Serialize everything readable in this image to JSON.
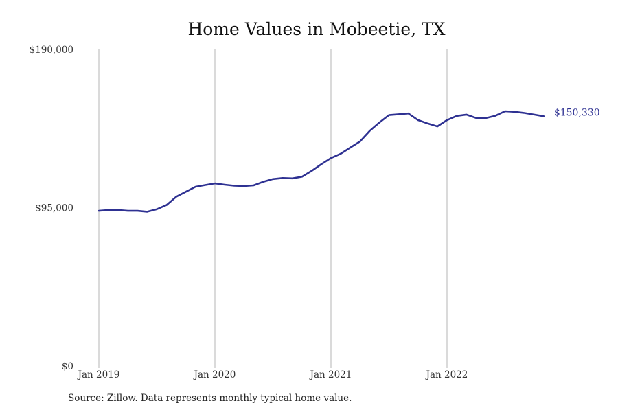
{
  "chart_data": {
    "type": "line",
    "title": "Home Values in Mobeetie, TX",
    "xlabel": "",
    "ylabel": "",
    "ylim": [
      0,
      190000
    ],
    "y_ticks": [
      {
        "value": 0,
        "label": "$0"
      },
      {
        "value": 95000,
        "label": "$95,000"
      },
      {
        "value": 190000,
        "label": "$190,000"
      }
    ],
    "x_ticks": [
      {
        "value": "2019-01",
        "label": "Jan 2019"
      },
      {
        "value": "2020-01",
        "label": "Jan 2020"
      },
      {
        "value": "2021-01",
        "label": "Jan 2021"
      },
      {
        "value": "2022-01",
        "label": "Jan 2022"
      }
    ],
    "x_range": [
      "2019-01",
      "2022-11"
    ],
    "grid": "vertical-only",
    "line_color": "#2e3192",
    "end_label": "$150,330",
    "source": "Source: Zillow. Data represents monthly typical home value.",
    "series": [
      {
        "x": [
          "2019-01",
          "2019-02",
          "2019-03",
          "2019-04",
          "2019-05",
          "2019-06",
          "2019-07",
          "2019-08",
          "2019-09",
          "2019-10",
          "2019-11",
          "2019-12",
          "2020-01",
          "2020-02",
          "2020-03",
          "2020-04",
          "2020-05",
          "2020-06",
          "2020-07",
          "2020-08",
          "2020-09",
          "2020-10",
          "2020-11",
          "2020-12",
          "2021-01",
          "2021-02",
          "2021-03",
          "2021-04",
          "2021-05",
          "2021-06",
          "2021-07",
          "2021-08",
          "2021-09",
          "2021-10",
          "2021-11",
          "2021-12",
          "2022-01",
          "2022-02",
          "2022-03",
          "2022-04",
          "2022-05",
          "2022-06",
          "2022-07",
          "2022-08",
          "2022-09",
          "2022-10",
          "2022-11"
        ],
        "values": [
          93500,
          94000,
          94000,
          93500,
          93500,
          93000,
          94500,
          97000,
          102000,
          105000,
          108000,
          109000,
          110000,
          109200,
          108600,
          108400,
          108800,
          111000,
          112600,
          113200,
          113000,
          114000,
          117500,
          121500,
          125200,
          127800,
          131500,
          135200,
          141500,
          146500,
          151000,
          151500,
          152000,
          148000,
          146000,
          144200,
          148000,
          150500,
          151300,
          149300,
          149200,
          150600,
          153300,
          153000,
          152300,
          151300,
          150330
        ]
      }
    ]
  }
}
